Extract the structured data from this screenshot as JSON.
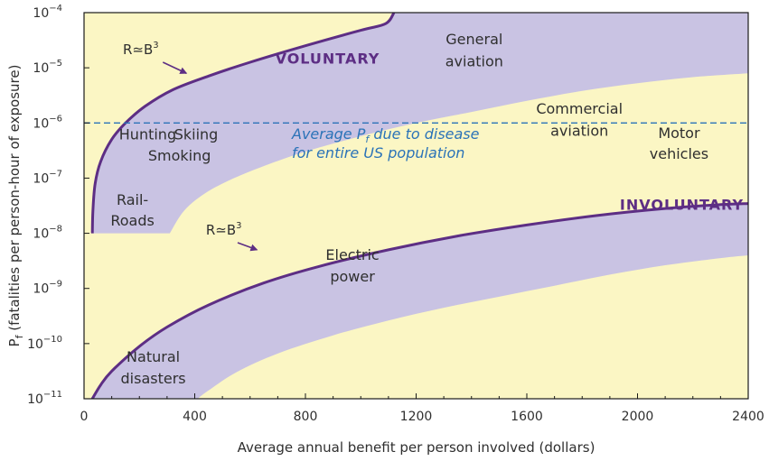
{
  "chart_data": {
    "type": "area",
    "xlabel": "Average annual benefit per person involved (dollars)",
    "ylabel_main": "P",
    "ylabel_sub": "f",
    "ylabel_rest": " (fatalities per person-hour of exposure)",
    "x_ticks": [
      "0",
      "400",
      "800",
      "1200",
      "1600",
      "2000",
      "2400"
    ],
    "xlim": [
      0,
      2400
    ],
    "ylim_exp": [
      -11,
      -4
    ],
    "y_tick_exponents": [
      -4,
      -5,
      -6,
      -7,
      -8,
      -9,
      -10,
      -11
    ],
    "y_tick_base": "10",
    "y_scale": "log",
    "grid": false,
    "colors": {
      "background": "#fbf6c4",
      "band": "#c9c3e3",
      "boundary": "#5d2e84",
      "disease_line": "#2b73b8",
      "label_accent": "#5d2e84"
    },
    "series": [
      {
        "name": "VOLUNTARY",
        "lower_boundary": [
          [
            310,
            -8
          ],
          [
            360,
            -7.6
          ],
          [
            430,
            -7.3
          ],
          [
            520,
            -7.05
          ],
          [
            650,
            -6.78
          ],
          [
            800,
            -6.52
          ],
          [
            1000,
            -6.24
          ],
          [
            1200,
            -6.0
          ],
          [
            1400,
            -5.8
          ],
          [
            1600,
            -5.6
          ],
          [
            1800,
            -5.42
          ],
          [
            2000,
            -5.28
          ],
          [
            2200,
            -5.17
          ],
          [
            2400,
            -5.1
          ]
        ],
        "upper_boundary": [
          [
            30,
            -8
          ],
          [
            32,
            -7.6
          ],
          [
            40,
            -7.1
          ],
          [
            60,
            -6.7
          ],
          [
            100,
            -6.3
          ],
          [
            150,
            -6.0
          ],
          [
            220,
            -5.7
          ],
          [
            320,
            -5.4
          ],
          [
            450,
            -5.15
          ],
          [
            600,
            -4.9
          ],
          [
            800,
            -4.6
          ],
          [
            1000,
            -4.32
          ],
          [
            1090,
            -4.2
          ],
          [
            1120,
            -4.0
          ]
        ]
      },
      {
        "name": "INVOLUNTARY",
        "lower_boundary": [
          [
            410,
            -11
          ],
          [
            450,
            -10.85
          ],
          [
            550,
            -10.52
          ],
          [
            700,
            -10.18
          ],
          [
            900,
            -9.85
          ],
          [
            1100,
            -9.58
          ],
          [
            1300,
            -9.35
          ],
          [
            1500,
            -9.15
          ],
          [
            1700,
            -8.95
          ],
          [
            1900,
            -8.75
          ],
          [
            2100,
            -8.58
          ],
          [
            2300,
            -8.45
          ],
          [
            2400,
            -8.4
          ]
        ],
        "upper_boundary": [
          [
            30,
            -11
          ],
          [
            60,
            -10.75
          ],
          [
            100,
            -10.5
          ],
          [
            200,
            -10.05
          ],
          [
            300,
            -9.7
          ],
          [
            450,
            -9.3
          ],
          [
            650,
            -8.9
          ],
          [
            850,
            -8.6
          ],
          [
            1100,
            -8.3
          ],
          [
            1350,
            -8.05
          ],
          [
            1600,
            -7.85
          ],
          [
            1850,
            -7.68
          ],
          [
            2100,
            -7.55
          ],
          [
            2300,
            -7.48
          ],
          [
            2400,
            -7.46
          ]
        ]
      }
    ],
    "disease_line": {
      "y_exp": -6,
      "label_line1": "Average P",
      "label_sub": "f",
      "label_line1_rest": " due to disease",
      "label_line2": "for entire US population"
    },
    "annotations": [
      {
        "text": "General",
        "x": 1410,
        "y": -4.57,
        "style": "plain"
      },
      {
        "text": "aviation",
        "x": 1410,
        "y": -4.97,
        "style": "plain"
      },
      {
        "text": "VOLUNTARY",
        "x": 880,
        "y": -4.92,
        "style": "bold"
      },
      {
        "text": "Commercial",
        "x": 1790,
        "y": -5.83,
        "style": "plain"
      },
      {
        "text": "aviation",
        "x": 1790,
        "y": -6.23,
        "style": "plain"
      },
      {
        "text": "Motor",
        "x": 2150,
        "y": -6.27,
        "style": "plain"
      },
      {
        "text": "vehicles",
        "x": 2150,
        "y": -6.65,
        "style": "plain"
      },
      {
        "text": "Hunting",
        "x": 230,
        "y": -6.3,
        "style": "plain"
      },
      {
        "text": "Skiing",
        "x": 405,
        "y": -6.3,
        "style": "plain"
      },
      {
        "text": "Smoking",
        "x": 345,
        "y": -6.68,
        "style": "plain"
      },
      {
        "text": "Rail-",
        "x": 175,
        "y": -7.48,
        "style": "plain"
      },
      {
        "text": "Roads",
        "x": 175,
        "y": -7.86,
        "style": "plain"
      },
      {
        "text": "INVOLUNTARY",
        "x": 2160,
        "y": -7.57,
        "style": "bold"
      },
      {
        "text": "Electric",
        "x": 970,
        "y": -8.48,
        "style": "plain"
      },
      {
        "text": "power",
        "x": 970,
        "y": -8.87,
        "style": "plain"
      },
      {
        "text": "Natural",
        "x": 250,
        "y": -10.33,
        "style": "plain"
      },
      {
        "text": "disasters",
        "x": 250,
        "y": -10.72,
        "style": "plain"
      }
    ],
    "callouts": [
      {
        "base": "R",
        "approx": "≃",
        "var": "B",
        "sup": "3",
        "tx": 205,
        "ty": -4.75,
        "ax0": 285,
        "ay0": -4.9,
        "ax1": 370,
        "ay1": -5.1
      },
      {
        "base": "R",
        "approx": "≃",
        "var": "B",
        "sup": "3",
        "tx": 505,
        "ty": -8.02,
        "ax0": 555,
        "ay0": -8.17,
        "ax1": 625,
        "ay1": -8.3
      }
    ]
  }
}
